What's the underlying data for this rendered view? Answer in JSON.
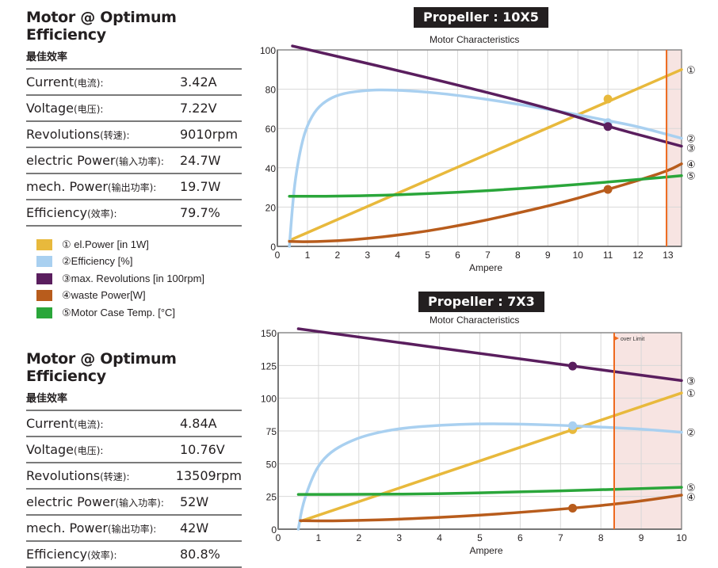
{
  "panels": [
    {
      "title": "Motor @ Optimum Efficiency",
      "subtitle": "最佳效率",
      "rows": [
        {
          "label": "Current",
          "label_cn": "(电流):",
          "value": "3.42A"
        },
        {
          "label": "Voltage",
          "label_cn": "(电压):",
          "value": "7.22V"
        },
        {
          "label": "Revolutions",
          "label_cn": "(转速):",
          "value": "9010rpm"
        },
        {
          "label": "electric Power",
          "label_cn": "(输入功率):",
          "value": "24.7W"
        },
        {
          "label": "mech. Power",
          "label_cn": "(输出功率):",
          "value": "19.7W"
        },
        {
          "label": "Efficiency",
          "label_cn": "(效率):",
          "value": "79.7%"
        }
      ]
    },
    {
      "title": "Motor @ Optimum Efficiency",
      "subtitle": "最佳效率",
      "rows": [
        {
          "label": "Current",
          "label_cn": "(电流):",
          "value": "4.84A"
        },
        {
          "label": "Voltage",
          "label_cn": "(电压):",
          "value": "10.76V"
        },
        {
          "label": "Revolutions",
          "label_cn": "(转速):",
          "value": "13509rpm"
        },
        {
          "label": "electric Power",
          "label_cn": "(输入功率):",
          "value": "52W"
        },
        {
          "label": "mech. Power",
          "label_cn": "(输出功率):",
          "value": "42W"
        },
        {
          "label": "Efficiency",
          "label_cn": "(效率):",
          "value": "80.8%"
        }
      ]
    }
  ],
  "legend": [
    {
      "label": "① el.Power [in 1W]",
      "color": "#e8b93c"
    },
    {
      "label": "②Efficiency [%]",
      "color": "#a9d0f0"
    },
    {
      "label": "③max. Revolutions [in 100rpm]",
      "color": "#5a1e5e"
    },
    {
      "label": "④waste Power[W]",
      "color": "#b85c1c"
    },
    {
      "label": "⑤Motor Case Temp. [°C]",
      "color": "#2aa63a"
    }
  ],
  "chart_data": [
    {
      "type": "line",
      "banner": "Propeller : 10X5",
      "title": "Motor Characteristics",
      "xlabel": "Ampere",
      "ylabel": "",
      "xlim": [
        0,
        13.45
      ],
      "ylim": [
        0,
        100
      ],
      "xticks": [
        0,
        1,
        2,
        3,
        4,
        5,
        6,
        7,
        8,
        9,
        10,
        11,
        12,
        13
      ],
      "yticks": [
        0,
        20,
        40,
        60,
        80,
        100
      ],
      "grid": true,
      "limit": {
        "x": 12.95,
        "label": "",
        "color": "#ee6a1f",
        "shade": "#f7e4e2"
      },
      "marker_x": 11,
      "series": [
        {
          "name": "① el.Power [in 1W]",
          "tag": "①",
          "color": "#e8b93c",
          "x": [
            0.4,
            13.45
          ],
          "y": [
            3,
            90
          ],
          "marker_y": 75
        },
        {
          "name": "②Efficiency [%]",
          "tag": "②",
          "color": "#a9d0f0",
          "x": [
            0.4,
            0.5,
            0.6,
            0.8,
            1.0,
            1.3,
            1.7,
            2.2,
            3.0,
            3.5,
            4.5,
            6,
            8,
            10,
            11,
            12,
            13.45
          ],
          "y": [
            0,
            20,
            35,
            52,
            62,
            70,
            75,
            78,
            79.5,
            79.7,
            79.2,
            77,
            72.5,
            67,
            64,
            61,
            55
          ],
          "marker_y": 63
        },
        {
          "name": "③max. Revolutions [in 100rpm]",
          "tag": "③",
          "color": "#5a1e5e",
          "x": [
            0.5,
            5,
            9,
            11,
            13.45
          ],
          "y": [
            102,
            86,
            70.5,
            61,
            51
          ],
          "marker_y": 61
        },
        {
          "name": "④waste Power[W]",
          "tag": "④",
          "color": "#b85c1c",
          "x": [
            0.4,
            1,
            2,
            3,
            4,
            5,
            6,
            7,
            8,
            9,
            10,
            11,
            12,
            13,
            13.45
          ],
          "y": [
            2.5,
            2.3,
            2.8,
            4,
            5.7,
            7.8,
            10.5,
            13.5,
            17,
            20.5,
            24.5,
            29,
            33.5,
            38.5,
            42
          ],
          "marker_y": 29
        },
        {
          "name": "⑤Motor Case Temp. [°C]",
          "tag": "⑤",
          "color": "#2aa63a",
          "x": [
            0.4,
            2,
            4,
            6,
            8,
            10,
            12,
            13.45
          ],
          "y": [
            25.5,
            25.5,
            26.2,
            27.5,
            29.3,
            31.5,
            34,
            36
          ],
          "marker_y": null
        }
      ]
    },
    {
      "type": "line",
      "banner": "Propeller : 7X3",
      "title": "Motor Characteristics",
      "xlabel": "Ampere",
      "ylabel": "",
      "xlim": [
        0,
        10
      ],
      "ylim": [
        0,
        150
      ],
      "xticks": [
        0,
        1,
        2,
        3,
        4,
        5,
        6,
        7,
        8,
        9,
        10
      ],
      "yticks": [
        0,
        25,
        50,
        75,
        100,
        125,
        150
      ],
      "grid": true,
      "limit": {
        "x": 8.33,
        "label": "over Limit",
        "color": "#ee6a1f",
        "shade": "#f7e4e2"
      },
      "marker_x": 7.3,
      "series": [
        {
          "name": "① el.Power [in 1W]",
          "tag": "①",
          "color": "#e8b93c",
          "x": [
            0.55,
            10
          ],
          "y": [
            6,
            104
          ],
          "marker_y": 76
        },
        {
          "name": "②Efficiency [%]",
          "tag": "②",
          "color": "#a9d0f0",
          "x": [
            0.5,
            0.6,
            0.8,
            1.0,
            1.3,
            1.7,
            2.2,
            3.0,
            4,
            5,
            6,
            7.3,
            8.3,
            9,
            10
          ],
          "y": [
            0,
            18,
            36,
            49,
            59,
            66,
            72,
            77,
            79.5,
            80.5,
            80.3,
            79,
            77.5,
            76.5,
            74
          ],
          "marker_y": 79
        },
        {
          "name": "③max. Revolutions [in 100rpm]",
          "tag": "③",
          "color": "#5a1e5e",
          "x": [
            0.5,
            7.3,
            10
          ],
          "y": [
            153,
            124.5,
            113.5
          ],
          "marker_y": 124.5
        },
        {
          "name": "④waste Power[W]",
          "tag": "④",
          "color": "#b85c1c",
          "x": [
            0.55,
            1,
            2,
            3,
            4,
            5,
            6,
            7.3,
            8.3,
            9,
            10
          ],
          "y": [
            6.5,
            6.3,
            6.6,
            7.6,
            9,
            10.7,
            12.8,
            16,
            19,
            21.5,
            26
          ],
          "marker_y": 16
        },
        {
          "name": "⑤Motor Case Temp. [°C]",
          "tag": "⑤",
          "color": "#2aa63a",
          "x": [
            0.5,
            2,
            4,
            6,
            8,
            10
          ],
          "y": [
            26.5,
            26.5,
            27,
            28.5,
            30,
            32
          ],
          "marker_y": null
        }
      ]
    }
  ]
}
